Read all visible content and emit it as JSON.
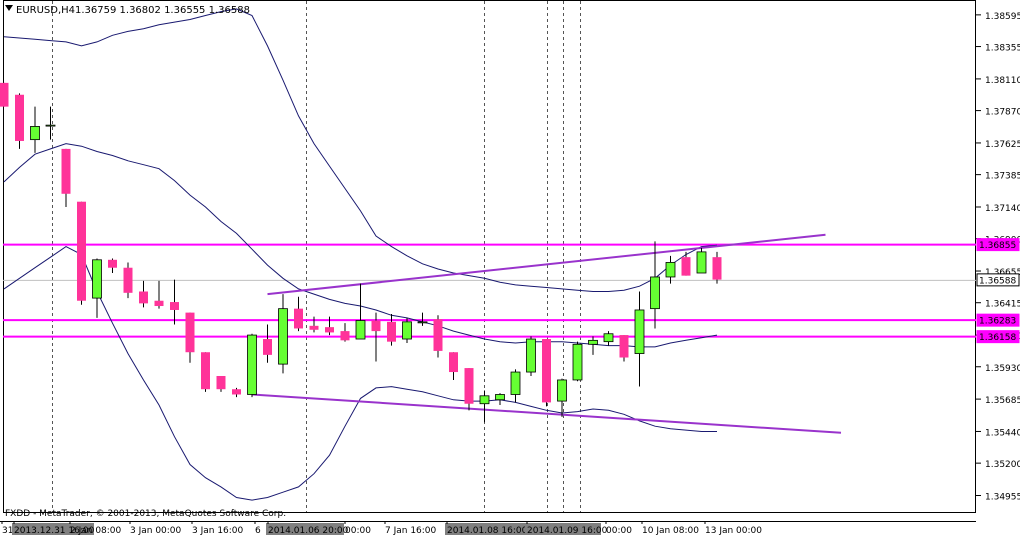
{
  "header": {
    "symbol": "EURUSD,H4",
    "ohlc": "1.36759 1.36802 1.36555 1.36588"
  },
  "footer": {
    "copyright": "FXDD - MetaTrader, © 2001-2013, MetaQuotes Software Corp."
  },
  "colors": {
    "bull_body": "#66ff33",
    "bear_body": "#ff3399",
    "wick": "#000000",
    "bands": "#191970",
    "channel": "#9933cc",
    "level": "#ff00ff",
    "bid": "#c0c0c0"
  },
  "chart_data": {
    "type": "candlestick",
    "ylim": [
      1.3483,
      1.387
    ],
    "y_ticks": [
      "1.38595",
      "1.38355",
      "1.38110",
      "1.37870",
      "1.37625",
      "1.37385",
      "1.37140",
      "1.36900",
      "1.36655",
      "1.36415",
      "1.36170",
      "1.35930",
      "1.35685",
      "1.35440",
      "1.35200",
      "1.34955"
    ],
    "x_tick_labels": [
      "31",
      "2013.12.31 16:00",
      "2 Jan 08:00",
      "3 Jan 00:00",
      "3 Jan 16:00",
      "6",
      "2014.01.06 20:00",
      "00:00",
      "7 Jan 16:00",
      "2014.01.08 16:00",
      "2014.01.09 16:00",
      "00:00",
      "10 Jan 08:00",
      "13 Jan 00:00"
    ],
    "current_price": "1.36588",
    "current_price_value": 1.36588,
    "levels": [
      {
        "label": "1.36855",
        "value": 1.36855
      },
      {
        "label": "1.36283",
        "value": 1.36283
      },
      {
        "label": "1.36158",
        "value": 1.36158
      }
    ],
    "candles": [
      {
        "o": 1.3808,
        "h": 1.3808,
        "l": 1.379,
        "c": 1.379
      },
      {
        "o": 1.3799,
        "h": 1.38,
        "l": 1.3758,
        "c": 1.3764
      },
      {
        "o": 1.3765,
        "h": 1.379,
        "l": 1.3755,
        "c": 1.3775
      },
      {
        "o": 1.3776,
        "h": 1.379,
        "l": 1.3765,
        "c": 1.3776
      },
      {
        "o": 1.3758,
        "h": 1.3758,
        "l": 1.3714,
        "c": 1.3724
      },
      {
        "o": 1.3718,
        "h": 1.3718,
        "l": 1.364,
        "c": 1.3643
      },
      {
        "o": 1.3645,
        "h": 1.3675,
        "l": 1.363,
        "c": 1.3674
      },
      {
        "o": 1.3674,
        "h": 1.3675,
        "l": 1.3664,
        "c": 1.3668
      },
      {
        "o": 1.3668,
        "h": 1.3672,
        "l": 1.3645,
        "c": 1.3649
      },
      {
        "o": 1.365,
        "h": 1.3658,
        "l": 1.3638,
        "c": 1.3641
      },
      {
        "o": 1.3643,
        "h": 1.3658,
        "l": 1.3637,
        "c": 1.3639
      },
      {
        "o": 1.3642,
        "h": 1.3659,
        "l": 1.3625,
        "c": 1.3636
      },
      {
        "o": 1.3634,
        "h": 1.3634,
        "l": 1.3596,
        "c": 1.3604
      },
      {
        "o": 1.3604,
        "h": 1.3604,
        "l": 1.3574,
        "c": 1.3576
      },
      {
        "o": 1.3586,
        "h": 1.3586,
        "l": 1.3574,
        "c": 1.3576
      },
      {
        "o": 1.3576,
        "h": 1.3577,
        "l": 1.357,
        "c": 1.3572
      },
      {
        "o": 1.3572,
        "h": 1.3618,
        "l": 1.357,
        "c": 1.3617
      },
      {
        "o": 1.3614,
        "h": 1.3625,
        "l": 1.3596,
        "c": 1.3602
      },
      {
        "o": 1.3595,
        "h": 1.3648,
        "l": 1.3588,
        "c": 1.3637
      },
      {
        "o": 1.3637,
        "h": 1.3646,
        "l": 1.362,
        "c": 1.3622
      },
      {
        "o": 1.3624,
        "h": 1.3631,
        "l": 1.3619,
        "c": 1.3621
      },
      {
        "o": 1.3623,
        "h": 1.3631,
        "l": 1.3617,
        "c": 1.3619
      },
      {
        "o": 1.362,
        "h": 1.3626,
        "l": 1.3612,
        "c": 1.3613
      },
      {
        "o": 1.3614,
        "h": 1.3656,
        "l": 1.3614,
        "c": 1.3628
      },
      {
        "o": 1.3628,
        "h": 1.3634,
        "l": 1.3597,
        "c": 1.362
      },
      {
        "o": 1.3627,
        "h": 1.3633,
        "l": 1.3609,
        "c": 1.3612
      },
      {
        "o": 1.3614,
        "h": 1.363,
        "l": 1.3611,
        "c": 1.3627
      },
      {
        "o": 1.3627,
        "h": 1.3634,
        "l": 1.3624,
        "c": 1.3627
      },
      {
        "o": 1.3629,
        "h": 1.3632,
        "l": 1.36,
        "c": 1.3605
      },
      {
        "o": 1.3604,
        "h": 1.3604,
        "l": 1.3583,
        "c": 1.3589
      },
      {
        "o": 1.3592,
        "h": 1.3592,
        "l": 1.356,
        "c": 1.3565
      },
      {
        "o": 1.3565,
        "h": 1.3575,
        "l": 1.3551,
        "c": 1.3571
      },
      {
        "o": 1.3568,
        "h": 1.3573,
        "l": 1.3564,
        "c": 1.3572
      },
      {
        "o": 1.3572,
        "h": 1.3591,
        "l": 1.3566,
        "c": 1.3589
      },
      {
        "o": 1.3589,
        "h": 1.3616,
        "l": 1.3586,
        "c": 1.3614
      },
      {
        "o": 1.3614,
        "h": 1.3614,
        "l": 1.3563,
        "c": 1.3566
      },
      {
        "o": 1.3567,
        "h": 1.3584,
        "l": 1.3555,
        "c": 1.3583
      },
      {
        "o": 1.3583,
        "h": 1.3612,
        "l": 1.3582,
        "c": 1.361
      },
      {
        "o": 1.361,
        "h": 1.3616,
        "l": 1.3602,
        "c": 1.3613
      },
      {
        "o": 1.3612,
        "h": 1.362,
        "l": 1.3609,
        "c": 1.3618
      },
      {
        "o": 1.3617,
        "h": 1.3617,
        "l": 1.3597,
        "c": 1.36
      },
      {
        "o": 1.3603,
        "h": 1.365,
        "l": 1.3578,
        "c": 1.3636
      },
      {
        "o": 1.3637,
        "h": 1.3688,
        "l": 1.3622,
        "c": 1.3661
      },
      {
        "o": 1.3661,
        "h": 1.3677,
        "l": 1.3656,
        "c": 1.3672
      },
      {
        "o": 1.3676,
        "h": 1.368,
        "l": 1.3662,
        "c": 1.3662
      },
      {
        "o": 1.3664,
        "h": 1.3683,
        "l": 1.3664,
        "c": 1.368
      },
      {
        "o": 1.3676,
        "h": 1.368,
        "l": 1.3656,
        "c": 1.3659
      }
    ],
    "band_upper": [
      1.3843,
      1.3842,
      1.3841,
      1.384,
      1.3839,
      1.3836,
      1.3839,
      1.3844,
      1.3847,
      1.3849,
      1.3852,
      1.3854,
      1.3856,
      1.3859,
      1.3862,
      1.3864,
      1.3859,
      1.3836,
      1.381,
      1.3783,
      1.3762,
      1.3745,
      1.3728,
      1.3711,
      1.3692,
      1.3684,
      1.3677,
      1.3671,
      1.3667,
      1.3664,
      1.3662,
      1.366,
      1.3657,
      1.3655,
      1.3654,
      1.3653,
      1.3652,
      1.3651,
      1.365,
      1.365,
      1.3651,
      1.3654,
      1.366,
      1.367,
      1.3678,
      1.3684,
      1.3685
    ],
    "band_middle": [
      1.3733,
      1.3744,
      1.3754,
      1.3758,
      1.3762,
      1.376,
      1.3756,
      1.3753,
      1.3749,
      1.3746,
      1.3743,
      1.3734,
      1.3723,
      1.3714,
      1.3703,
      1.3694,
      1.3682,
      1.367,
      1.366,
      1.3652,
      1.3648,
      1.3644,
      1.3641,
      1.3639,
      1.3636,
      1.3632,
      1.363,
      1.3627,
      1.3624,
      1.362,
      1.3617,
      1.3614,
      1.3612,
      1.3611,
      1.3612,
      1.3612,
      1.3612,
      1.3611,
      1.361,
      1.3609,
      1.3609,
      1.3608,
      1.3608,
      1.3611,
      1.3613,
      1.3615,
      1.3617
    ],
    "band_lower": [
      1.3652,
      1.366,
      1.3668,
      1.3676,
      1.3684,
      1.3678,
      1.365,
      1.3626,
      1.3603,
      1.3583,
      1.3564,
      1.354,
      1.3519,
      1.3509,
      1.3502,
      1.3494,
      1.3492,
      1.3494,
      1.3498,
      1.3502,
      1.3512,
      1.3526,
      1.3548,
      1.3569,
      1.3577,
      1.3578,
      1.3576,
      1.3574,
      1.3571,
      1.3568,
      1.3567,
      1.3567,
      1.3568,
      1.3566,
      1.3563,
      1.356,
      1.3558,
      1.3559,
      1.3561,
      1.356,
      1.3557,
      1.3552,
      1.3548,
      1.3546,
      1.3545,
      1.3544,
      1.3544
    ],
    "channel_upper": {
      "from": {
        "i": 17,
        "y": 1.3648
      },
      "to": {
        "i": 53,
        "y": 1.3693
      }
    },
    "channel_lower": {
      "from": {
        "i": 16,
        "y": 1.3572
      },
      "to": {
        "i": 54,
        "y": 1.3543
      }
    }
  }
}
